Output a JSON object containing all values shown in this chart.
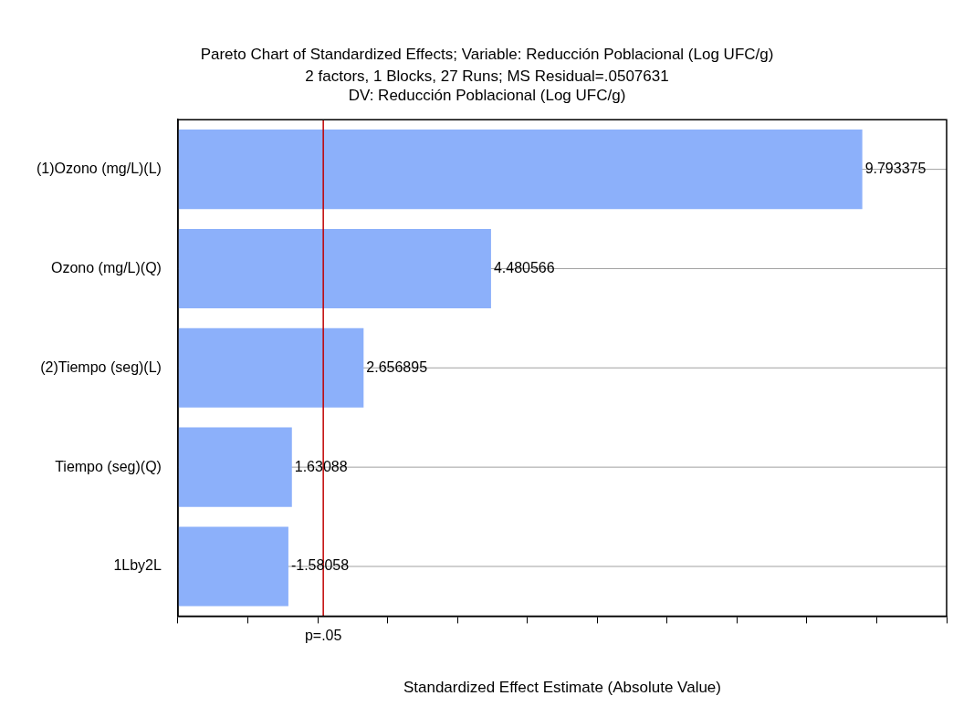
{
  "chart_data": {
    "type": "bar",
    "orientation": "horizontal",
    "title": "Pareto Chart of Standardized Effects; Variable: Reducción Poblacional (Log UFC/g)",
    "subtitle": "2 factors, 1 Blocks, 27 Runs; MS Residual=.0507631\nDV: Reducción Poblacional (Log UFC/g)",
    "xlabel": "Standardized Effect Estimate (Absolute Value)",
    "categories": [
      "(1)Ozono (mg/L)(L)",
      "Ozono (mg/L)(Q)",
      "(2)Tiempo (seg)(L)",
      "Tiempo (seg)(Q)",
      "1Lby2L"
    ],
    "values": [
      9.793375,
      4.480566,
      2.656895,
      1.63088,
      1.58058
    ],
    "value_labels": [
      "9.793375",
      "4.480566",
      "2.656895",
      "1.63088",
      null
    ],
    "annotations": [
      {
        "text": "-1.58058",
        "x": 1.58058,
        "y": "1Lby2L"
      }
    ],
    "color": "#8cb0fa",
    "xlim": [
      0,
      11
    ],
    "xticks": [
      {
        "value": 0,
        "label": null
      },
      {
        "value": 1,
        "label": null
      },
      {
        "value": 2,
        "label": null
      },
      {
        "value": 3,
        "label": null
      },
      {
        "value": 4,
        "label": null
      },
      {
        "value": 5,
        "label": null
      },
      {
        "value": 6,
        "label": null
      },
      {
        "value": 7,
        "label": null
      },
      {
        "value": 8,
        "label": null
      },
      {
        "value": 9,
        "label": null
      },
      {
        "value": 10,
        "label": null
      },
      {
        "value": 11,
        "label": null
      }
    ],
    "ref_lines": [
      {
        "axis": "x",
        "value": 2.08,
        "label": "p=.05",
        "color": "#c00000"
      }
    ],
    "grid": "y",
    "legend": false
  }
}
